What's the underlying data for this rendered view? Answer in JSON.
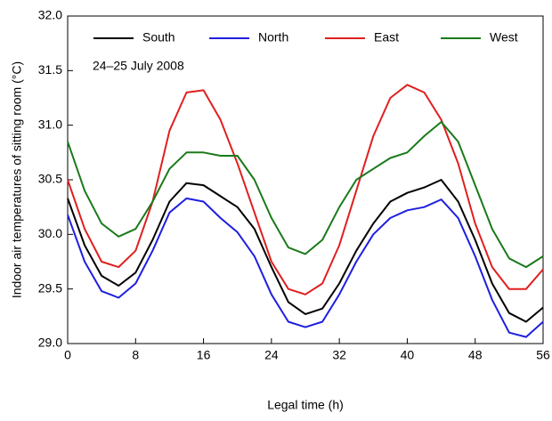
{
  "chart_data": {
    "type": "line",
    "annotation": "24–25 July 2008",
    "xlabel": "Legal time (h)",
    "ylabel": "Indoor air temperatures of sitting room (°C)",
    "x": [
      0,
      2,
      4,
      6,
      8,
      10,
      12,
      14,
      16,
      18,
      20,
      22,
      24,
      26,
      28,
      30,
      32,
      34,
      36,
      38,
      40,
      42,
      44,
      46,
      48,
      50,
      52,
      54,
      56
    ],
    "series": [
      {
        "name": "South",
        "color": "#000000",
        "values": [
          30.33,
          29.9,
          29.62,
          29.53,
          29.65,
          29.95,
          30.3,
          30.47,
          30.45,
          30.35,
          30.25,
          30.05,
          29.7,
          29.38,
          29.27,
          29.32,
          29.55,
          29.85,
          30.1,
          30.3,
          30.38,
          30.43,
          30.5,
          30.3,
          29.95,
          29.55,
          29.28,
          29.2,
          29.33
        ]
      },
      {
        "name": "North",
        "color": "#1f1fe0",
        "values": [
          30.18,
          29.75,
          29.48,
          29.42,
          29.55,
          29.85,
          30.2,
          30.33,
          30.3,
          30.15,
          30.02,
          29.8,
          29.45,
          29.2,
          29.15,
          29.2,
          29.45,
          29.75,
          30.0,
          30.15,
          30.22,
          30.25,
          30.32,
          30.15,
          29.8,
          29.4,
          29.1,
          29.06,
          29.2
        ]
      },
      {
        "name": "East",
        "color": "#e01f1f",
        "values": [
          30.5,
          30.05,
          29.75,
          29.7,
          29.85,
          30.3,
          30.95,
          31.3,
          31.32,
          31.05,
          30.65,
          30.2,
          29.75,
          29.5,
          29.45,
          29.55,
          29.9,
          30.4,
          30.9,
          31.25,
          31.37,
          31.3,
          31.05,
          30.65,
          30.1,
          29.7,
          29.5,
          29.5,
          29.68
        ]
      },
      {
        "name": "West",
        "color": "#1a7a1a",
        "values": [
          30.85,
          30.4,
          30.1,
          29.98,
          30.05,
          30.3,
          30.6,
          30.75,
          30.75,
          30.72,
          30.72,
          30.5,
          30.15,
          29.88,
          29.82,
          29.95,
          30.25,
          30.5,
          30.6,
          30.7,
          30.75,
          30.9,
          31.03,
          30.85,
          30.45,
          30.05,
          29.78,
          29.7,
          29.8
        ]
      }
    ],
    "xlim": [
      0,
      56
    ],
    "xticks": [
      0,
      8,
      16,
      24,
      32,
      40,
      48,
      56
    ],
    "ylim": [
      29,
      32
    ],
    "yticks": [
      {
        "value": 29,
        "label": "29.0"
      },
      29.5,
      {
        "value": 30,
        "label": "30.0"
      },
      30.5,
      {
        "value": 31,
        "label": "31.0"
      },
      31.5,
      {
        "value": 32,
        "label": "32.0"
      }
    ],
    "legend": "top"
  }
}
